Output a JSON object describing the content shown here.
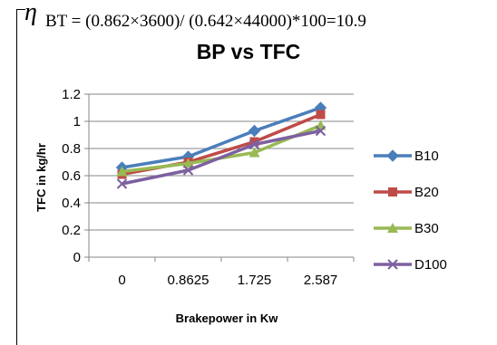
{
  "formula": {
    "eta": "η",
    "text": "BT = (0.862×3600)/ (0.642×44000)*100=10.9"
  },
  "chart_data": {
    "type": "line",
    "title": "BP vs TFC",
    "xlabel": "Brakepower in  Kw",
    "ylabel": "TFC in kg/hr",
    "categories": [
      "0",
      "0.8625",
      "1.725",
      "2.587"
    ],
    "ylim": [
      0,
      1.2
    ],
    "yticks": [
      "0",
      "0.2",
      "0.4",
      "0.6",
      "0.8",
      "1",
      "1.2"
    ],
    "grid": "horizontal",
    "legend_position": "right",
    "series": [
      {
        "name": "B10",
        "values": [
          0.66,
          0.74,
          0.93,
          1.1
        ],
        "color": "#4a7ebb",
        "marker": "diamond"
      },
      {
        "name": "B20",
        "values": [
          0.61,
          0.7,
          0.85,
          1.05
        ],
        "color": "#be4b48",
        "marker": "square"
      },
      {
        "name": "B30",
        "values": [
          0.63,
          0.69,
          0.77,
          0.97
        ],
        "color": "#98b954",
        "marker": "triangle"
      },
      {
        "name": "D100",
        "values": [
          0.54,
          0.64,
          0.83,
          0.93
        ],
        "color": "#7d60a0",
        "marker": "x"
      }
    ]
  }
}
